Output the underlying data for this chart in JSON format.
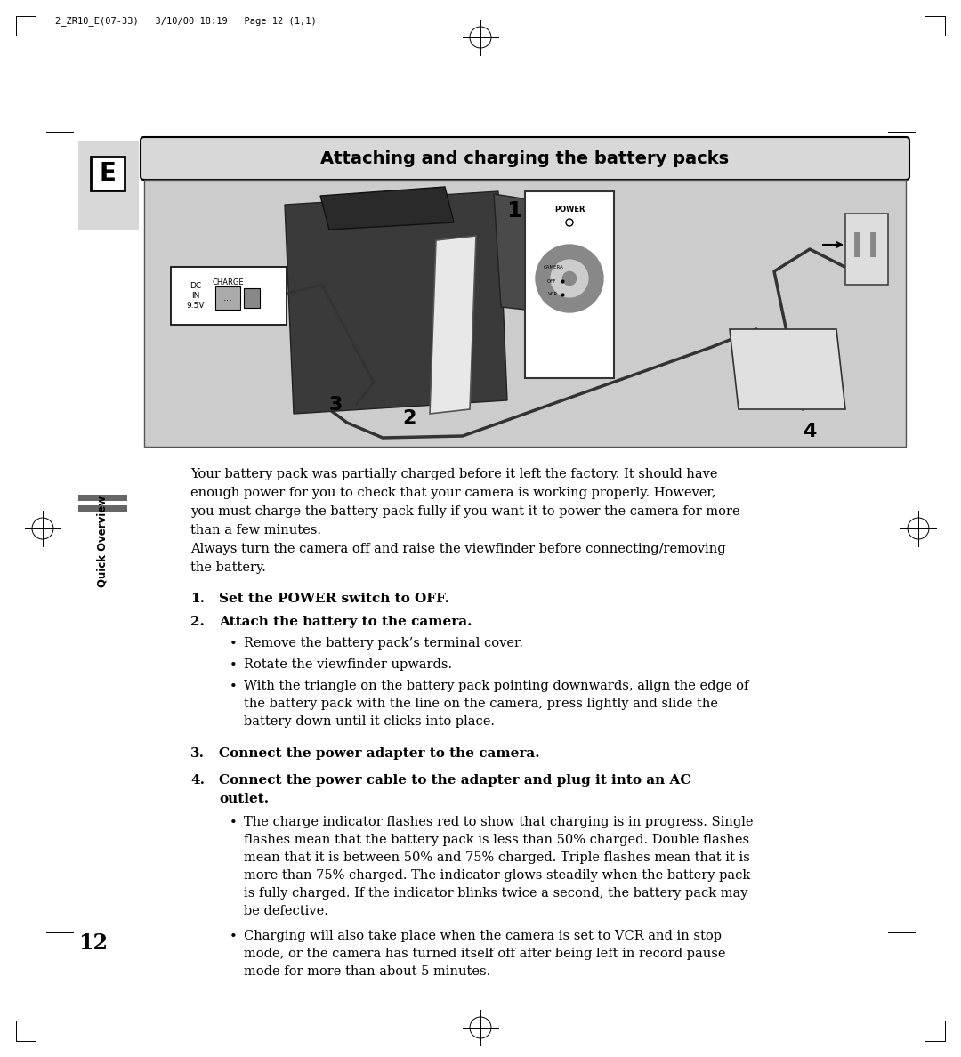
{
  "header_text": "2_ZR10_E(07-33)   3/10/00 18:19   Page 12 (1,1)",
  "section_title": "Attaching and charging the battery packs",
  "page_number": "12",
  "sidebar_label": "Quick Overview",
  "intro_text": "Your battery pack was partially charged before it left the factory. It should have\nenough power for you to check that your camera is working properly. However,\nyou must charge the battery pack fully if you want it to power the camera for more\nthan a few minutes.\nAlways turn the camera off and raise the viewfinder before connecting/removing\nthe battery.",
  "step1_bold": "Set the POWER switch to OFF.",
  "step2_bold": "Attach the battery to the camera.",
  "step3_bold": "Connect the power adapter to the camera.",
  "step4_bold_line1": "Connect the power cable to the adapter and plug it into an AC",
  "step4_bold_line2": "outlet.",
  "step2_bullets": [
    "Remove the battery pack’s terminal cover.",
    "Rotate the viewfinder upwards.",
    "With the triangle on the battery pack pointing downwards, align the edge of\nthe battery pack with the line on the camera, press lightly and slide the\nbattery down until it clicks into place."
  ],
  "step4_bullet1_lines": [
    "The charge indicator flashes red to show that charging is in progress. Single",
    "flashes mean that the battery pack is less than 50% charged. Double flashes",
    "mean that it is between 50% and 75% charged. Triple flashes mean that it is",
    "more than 75% charged. The indicator glows steadily when the battery pack",
    "is fully charged. If the indicator blinks twice a second, the battery pack may",
    "be defective."
  ],
  "step4_bullet2_lines": [
    "Charging will also take place when the camera is set to VCR and in stop",
    "mode, or the camera has turned itself off after being left in record pause",
    "mode for more than about 5 minutes."
  ],
  "bg_color": "#ffffff",
  "sidebar_bg": "#d8d8d8",
  "image_bg": "#cccccc",
  "title_box_bg": "#d8d8d8",
  "text_color": "#000000"
}
